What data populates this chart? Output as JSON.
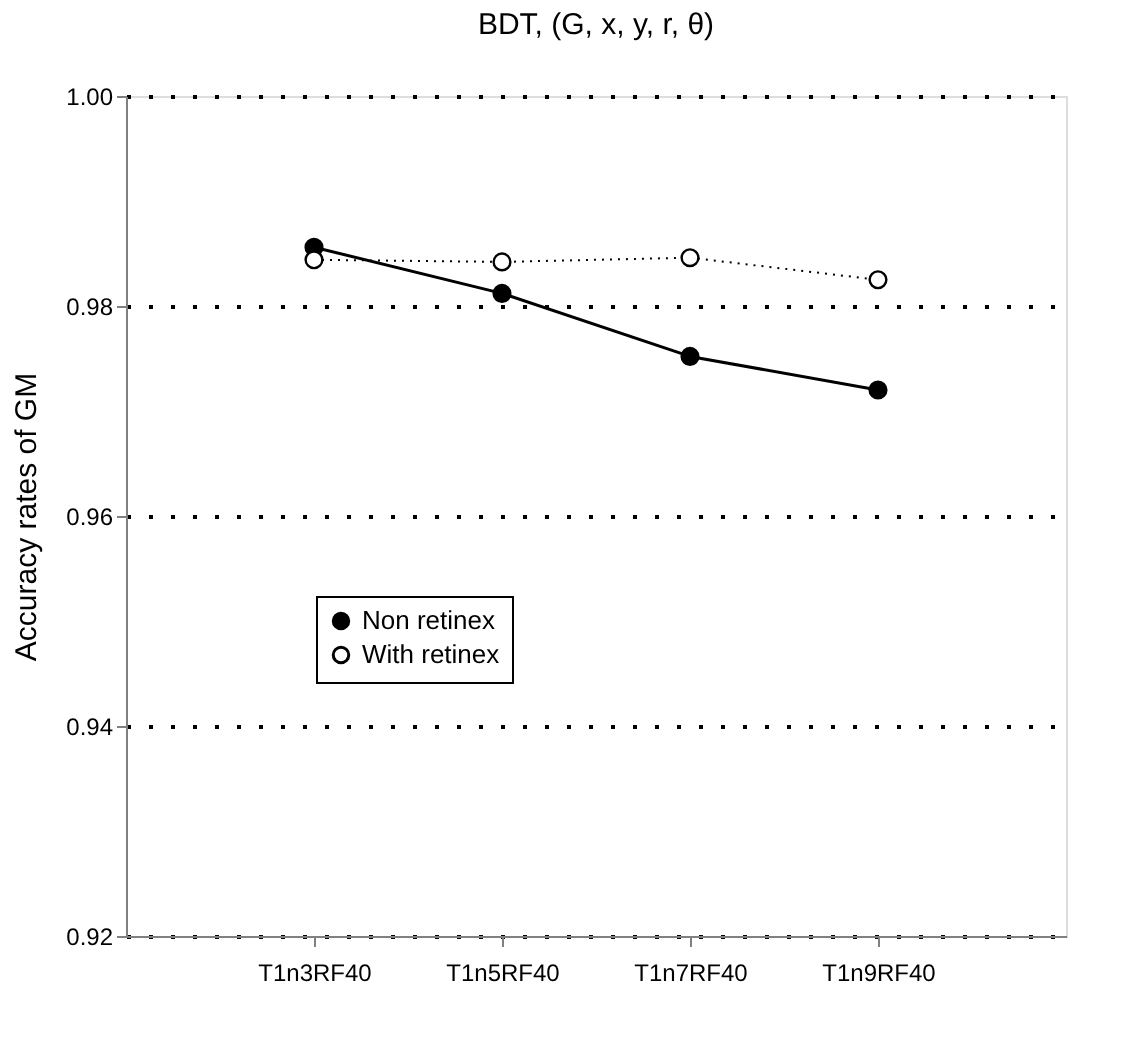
{
  "chart_data": {
    "type": "line",
    "title": "BDT, (G, x, y, r, θ)",
    "ylabel": "Accuracy rates of GM",
    "categories": [
      "T1n3RF40",
      "T1n5RF40",
      "T1n7RF40",
      "T1n9RF40"
    ],
    "series": [
      {
        "name": "Non retinex",
        "color": "#000000",
        "line_style": "solid",
        "values": [
          0.9856,
          0.9812,
          0.9752,
          0.972
        ]
      },
      {
        "name": "With retinex",
        "color": "#000000",
        "line_style": "dotted",
        "values": [
          0.9844,
          0.9842,
          0.9846,
          0.9825
        ]
      }
    ],
    "ylim": [
      0.92,
      1.0
    ],
    "yticks": [
      {
        "value": 0.92,
        "label": "0.92"
      },
      {
        "value": 0.94,
        "label": "0.94"
      },
      {
        "value": 0.96,
        "label": "0.96"
      },
      {
        "value": 0.98,
        "label": "0.98"
      },
      {
        "value": 1.0,
        "label": "1.00"
      }
    ],
    "grid": "y",
    "legend": "bottom left",
    "marker": "circle"
  }
}
